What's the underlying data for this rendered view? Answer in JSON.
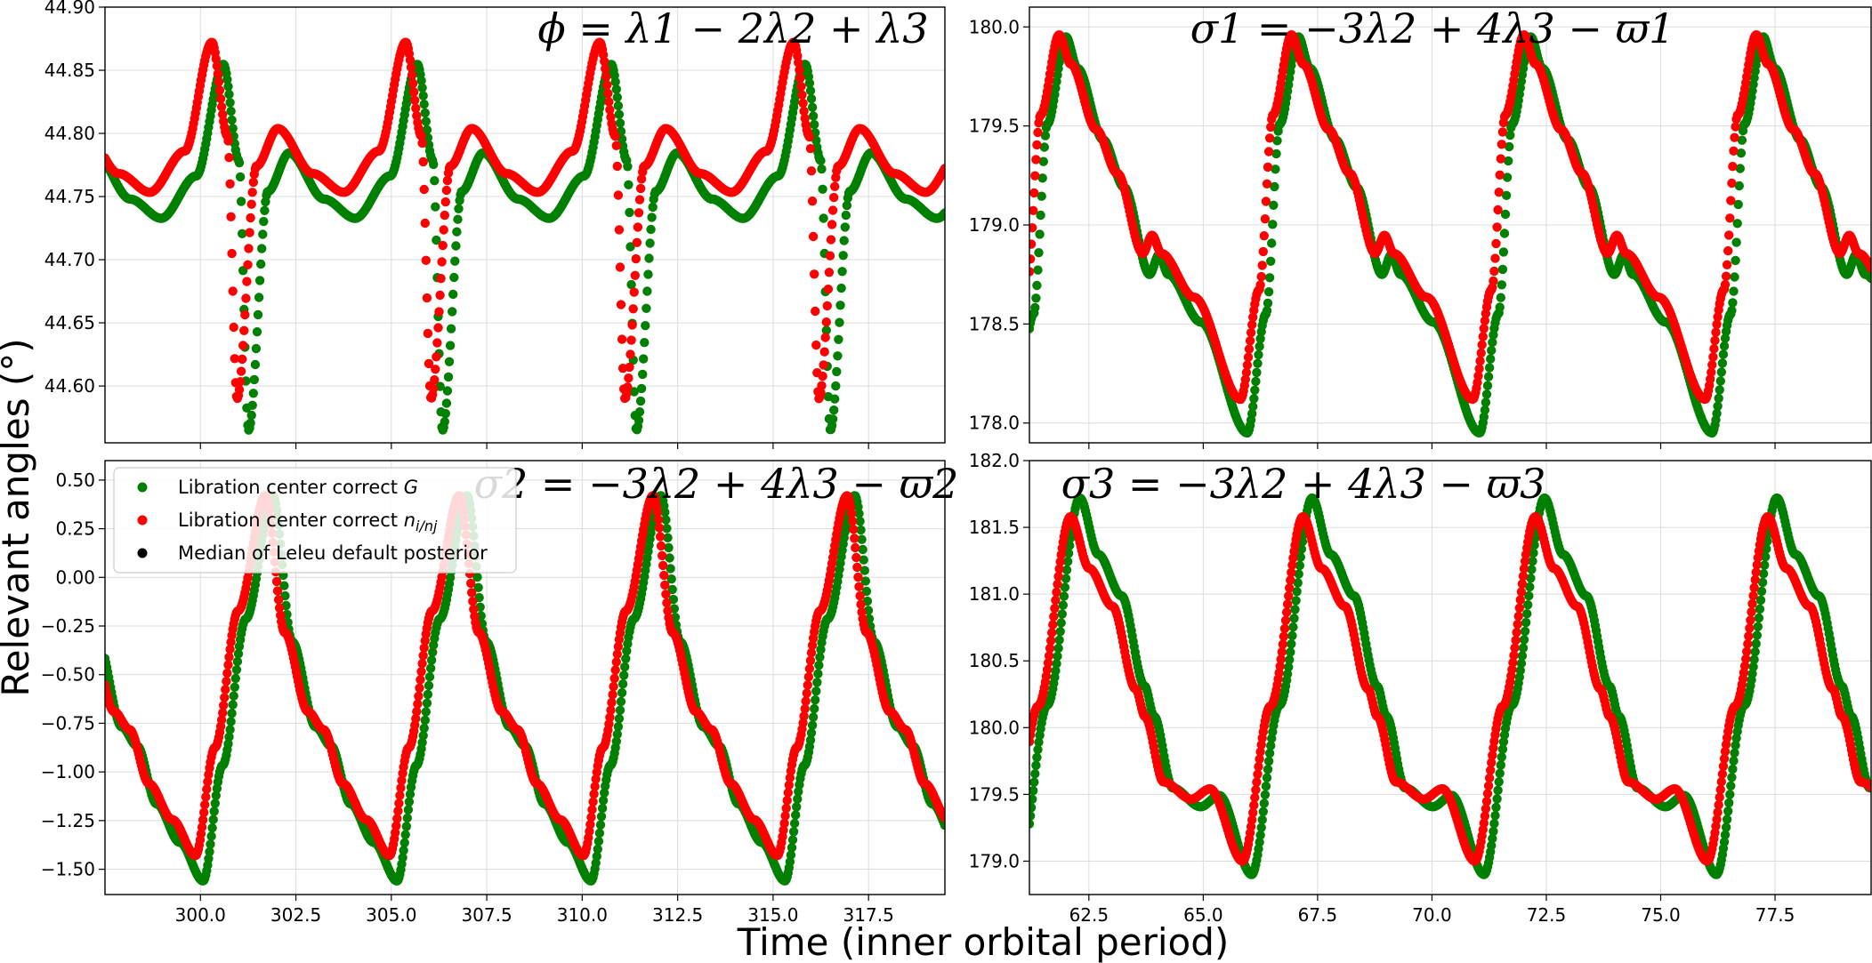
{
  "figure": {
    "ylabel": "Relevant angles (°)",
    "xlabel": "Time (inner orbital period)"
  },
  "colors": {
    "G": "#008000",
    "n": "#ff0000",
    "median": "#000000",
    "grid": "#dcdcdc"
  },
  "legend": {
    "items": [
      {
        "label_main": "Libration center correct ",
        "label_math": "G",
        "label_sub": "",
        "color": "#008000"
      },
      {
        "label_main": "Libration center correct ",
        "label_math": "n",
        "label_sub": "i/nj",
        "color": "#ff0000"
      },
      {
        "label_main": "Median of Leleu default posterior",
        "label_math": "",
        "label_sub": "",
        "color": "#000000"
      }
    ]
  },
  "chart_data": [
    {
      "id": "phi",
      "type": "scatter",
      "title": "ϕ = λ1 − 2λ2 + λ3",
      "title_parts": {
        "lead": "ϕ = λ",
        "rest": ""
      },
      "xlim": [
        297.5,
        319.5
      ],
      "ylim": [
        44.555,
        44.9
      ],
      "yticks": [
        "44.60",
        "44.65",
        "44.70",
        "44.75",
        "44.80",
        "44.85",
        "44.90"
      ],
      "xticks": [
        300.0,
        302.5,
        305.0,
        307.5,
        310.0,
        312.5,
        315.0,
        317.5
      ],
      "period": 5.08,
      "series": [
        {
          "name": "Libration center correct G",
          "color": "#008000",
          "peak_x": 300.6,
          "mean": 44.788,
          "amp_top": 44.87,
          "amp_bottom": 44.565,
          "valley_x": 301.25,
          "secondary_max": 44.792,
          "secondary_min": 44.757
        },
        {
          "name": "Libration center correct ni/nj",
          "color": "#ff0000",
          "peak_x": 300.3,
          "mean": 44.808,
          "amp_top": 44.887,
          "amp_bottom": 44.59,
          "valley_x": 301.0,
          "secondary_max": 44.813,
          "secondary_min": 44.777
        }
      ]
    },
    {
      "id": "sigma1",
      "type": "scatter",
      "title": "σ1 = −3λ2 + 4λ3 − ϖ1",
      "xlim": [
        61.2,
        79.6
      ],
      "ylim": [
        177.9,
        180.1
      ],
      "yticks": [
        "178.0",
        "178.5",
        "179.0",
        "179.5",
        "180.0"
      ],
      "xticks": [
        62.5,
        65.0,
        67.5,
        70.0,
        72.5,
        75.0,
        77.5
      ],
      "period": 5.08,
      "series": [
        {
          "name": "Libration center correct G",
          "color": "#008000",
          "peak_x": 62.0,
          "max": 179.95,
          "min": 177.95,
          "valley_x": 66.0
        },
        {
          "name": "Libration center correct ni/nj",
          "color": "#ff0000",
          "peak_x": 61.85,
          "max": 179.96,
          "min": 178.12,
          "valley_x": 65.75
        }
      ]
    },
    {
      "id": "sigma2",
      "type": "scatter",
      "title": "σ2 = −3λ2 + 4λ3 − ϖ2",
      "xlim": [
        297.5,
        319.5
      ],
      "ylim": [
        -1.63,
        0.6
      ],
      "yticks": [
        "−1.50",
        "−1.25",
        "−1.00",
        "−0.75",
        "−0.50",
        "−0.25",
        "0.00",
        "0.25",
        "0.50"
      ],
      "xticks": [
        300.0,
        302.5,
        305.0,
        307.5,
        310.0,
        312.5,
        315.0,
        317.5
      ],
      "period": 5.08,
      "series": [
        {
          "name": "Libration center correct G",
          "color": "#008000",
          "peak_x": 301.9,
          "max": 0.42,
          "min": -1.56,
          "valley_x": 301.2
        },
        {
          "name": "Libration center correct ni/nj",
          "color": "#ff0000",
          "peak_x": 301.7,
          "max": 0.42,
          "min": -1.43,
          "valley_x": 300.9
        }
      ]
    },
    {
      "id": "sigma3",
      "type": "scatter",
      "title": "σ3 = −3λ2 + 4λ3 − ϖ3",
      "xlim": [
        61.2,
        79.6
      ],
      "ylim": [
        178.75,
        182.0
      ],
      "yticks": [
        "179.0",
        "179.5",
        "180.0",
        "180.5",
        "181.0",
        "181.5",
        "182.0"
      ],
      "xticks": [
        62.5,
        65.0,
        67.5,
        70.0,
        72.5,
        75.0,
        77.5
      ],
      "period": 5.08,
      "series": [
        {
          "name": "Libration center correct G",
          "color": "#008000",
          "peak_x": 62.3,
          "max": 181.72,
          "min": 178.9,
          "valley_x": 61.5
        },
        {
          "name": "Libration center correct ni/nj",
          "color": "#ff0000",
          "peak_x": 62.1,
          "max": 181.58,
          "min": 179.0,
          "valley_x": 61.3
        }
      ]
    }
  ]
}
